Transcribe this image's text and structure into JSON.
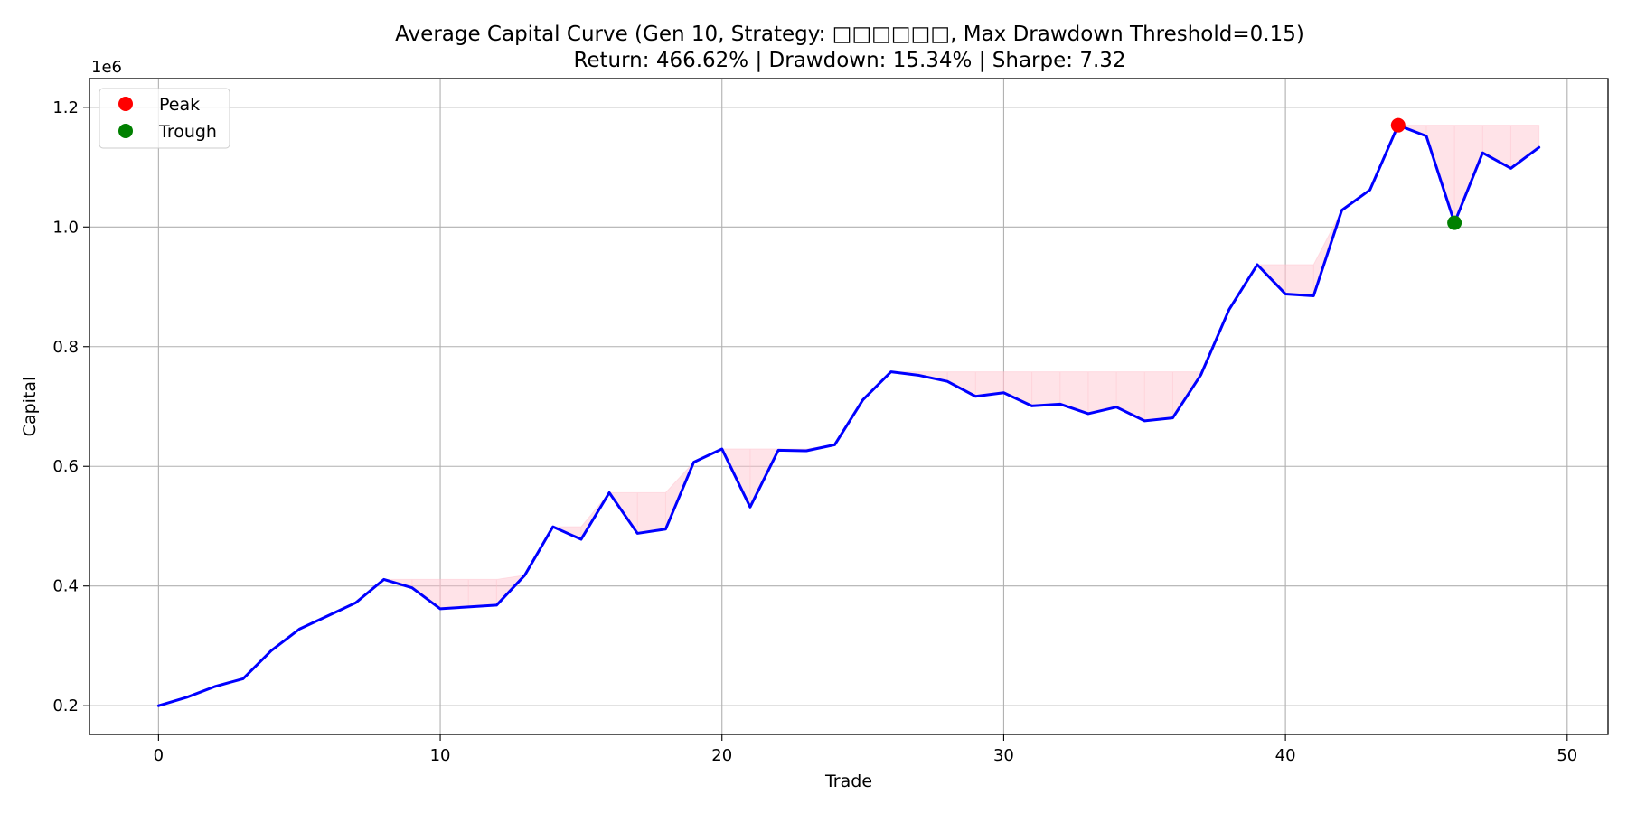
{
  "chart_data": {
    "type": "line",
    "title_line1": "Average Capital Curve (Gen 10, Strategy: □□□□□□, Max Drawdown Threshold=0.15)",
    "title_line2": "Return: 466.62% | Drawdown: 15.34% | Sharpe: 7.32",
    "xlabel": "Trade",
    "ylabel": "Capital",
    "y_offset_label": "1e6",
    "xlim": [
      -2.45,
      51.45
    ],
    "ylim": [
      0.152,
      1.248
    ],
    "x_ticks": [
      0,
      10,
      20,
      30,
      40,
      50
    ],
    "y_ticks": [
      0.2,
      0.4,
      0.6,
      0.8,
      1.0,
      1.2
    ],
    "y_tick_labels": [
      "0.2",
      "0.4",
      "0.6",
      "0.8",
      "1.0",
      "1.2"
    ],
    "grid": true,
    "legend_position": "top-left",
    "series": [
      {
        "values": [
          0.2,
          0.214,
          0.232,
          0.245,
          0.292,
          0.328,
          0.35,
          0.372,
          0.411,
          0.397,
          0.362,
          0.365,
          0.368,
          0.418,
          0.499,
          0.478,
          0.556,
          0.488,
          0.495,
          0.607,
          0.629,
          0.532,
          0.627,
          0.626,
          0.636,
          0.711,
          0.758,
          0.752,
          0.742,
          0.717,
          0.723,
          0.701,
          0.704,
          0.688,
          0.699,
          0.676,
          0.681,
          0.753,
          0.862,
          0.937,
          0.888,
          0.885,
          1.028,
          1.062,
          1.17,
          1.152,
          1.007,
          1.124,
          1.098,
          1.133
        ],
        "color": "#0000ff"
      }
    ],
    "drawdown_fill_color": "#ffc0cb",
    "markers": [
      {
        "name": "Peak",
        "x": 44,
        "y": 1.17,
        "color": "#ff0000"
      },
      {
        "name": "Trough",
        "x": 46,
        "y": 1.007,
        "color": "#008000"
      }
    ]
  }
}
